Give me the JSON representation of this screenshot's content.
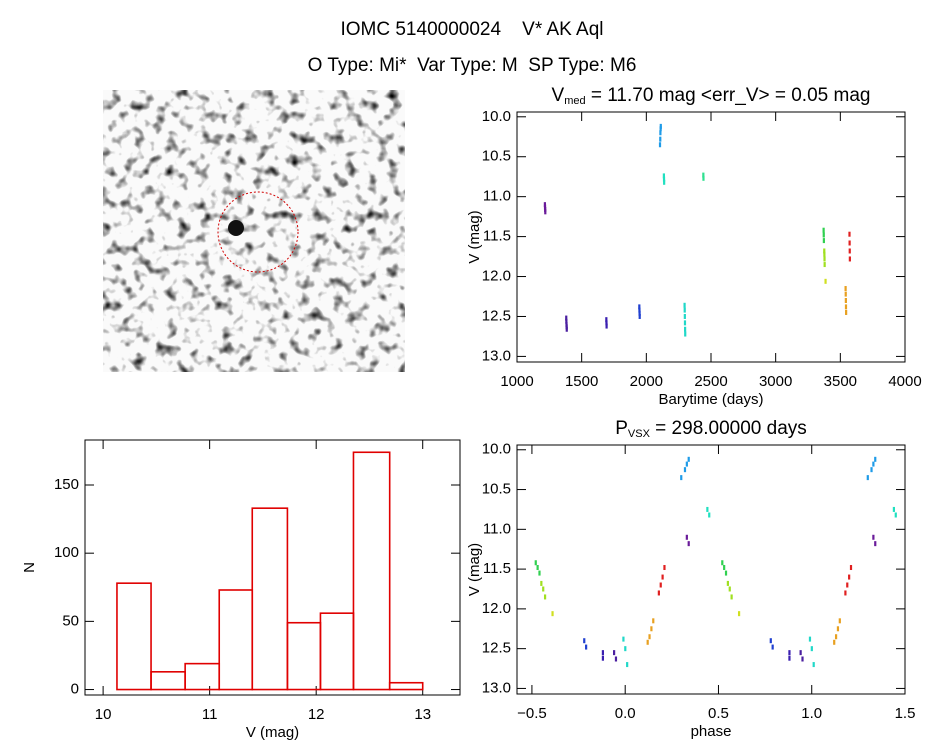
{
  "header": {
    "title": "IOMC 5140000024    V* AK Aql",
    "subtitle": "O Type: Mi*  Var Type: M  SP Type: M6"
  },
  "chart_data": [
    {
      "type": "scatter",
      "title": [
        "V",
        "med",
        " = 11.70 mag <err_V> = 0.05 mag"
      ],
      "xlabel": "Barytime (days)",
      "ylabel": "V (mag)",
      "xlim": [
        1000,
        4000
      ],
      "xticks": [
        1000,
        1500,
        2000,
        2500,
        3000,
        3500,
        4000
      ],
      "ylim": [
        9.94,
        13.07
      ],
      "yreverse": true,
      "yticks": [
        {
          "value": 10,
          "label": "10.0"
        },
        {
          "value": 10.5,
          "label": "10.5"
        },
        {
          "value": 11,
          "label": "11.0"
        },
        {
          "value": 11.5,
          "label": "11.5"
        },
        {
          "value": 12,
          "label": "12.0"
        },
        {
          "value": 12.5,
          "label": "12.5"
        },
        {
          "value": 13,
          "label": "13.0"
        }
      ],
      "series": [
        {
          "color": "#6a1b9a",
          "x": [
            1215,
            1216,
            1217,
            1218
          ],
          "y": [
            11.1,
            11.13,
            11.16,
            11.19
          ]
        },
        {
          "color": "#4b1fa0",
          "x": [
            1380,
            1381,
            1382,
            1383,
            1384
          ],
          "y": [
            12.52,
            12.56,
            12.6,
            12.63,
            12.66
          ]
        },
        {
          "color": "#3a1fb0",
          "x": [
            1690,
            1691,
            1692
          ],
          "y": [
            12.54,
            12.58,
            12.62
          ]
        },
        {
          "color": "#2040d0",
          "x": [
            1945,
            1946,
            1947,
            1948
          ],
          "y": [
            12.38,
            12.42,
            12.46,
            12.5
          ]
        },
        {
          "color": "#1e9be8",
          "x": [
            2105,
            2107,
            2108,
            2110,
            2111
          ],
          "y": [
            10.35,
            10.28,
            10.2,
            10.15,
            10.12
          ]
        },
        {
          "color": "#20e0c0",
          "x": [
            2135,
            2136,
            2137
          ],
          "y": [
            10.74,
            10.78,
            10.82
          ]
        },
        {
          "color": "#20d8c8",
          "x": [
            2295,
            2296,
            2297,
            2298,
            2299,
            2300
          ],
          "y": [
            12.36,
            12.42,
            12.5,
            12.58,
            12.66,
            12.72
          ]
        },
        {
          "color": "#30e090",
          "x": [
            2440,
            2441
          ],
          "y": [
            10.73,
            10.77
          ]
        },
        {
          "color": "#30d050",
          "x": [
            3370,
            3371,
            3372
          ],
          "y": [
            11.42,
            11.48,
            11.55
          ]
        },
        {
          "color": "#a0e020",
          "x": [
            3375,
            3376,
            3377,
            3378
          ],
          "y": [
            11.68,
            11.72,
            11.78,
            11.85
          ]
        },
        {
          "color": "#d0e020",
          "x": [
            3385
          ],
          "y": [
            12.06
          ]
        },
        {
          "color": "#e8a020",
          "x": [
            3540,
            3541,
            3542,
            3543,
            3544
          ],
          "y": [
            12.15,
            12.22,
            12.3,
            12.38,
            12.45
          ]
        },
        {
          "color": "#e02020",
          "x": [
            3570,
            3571,
            3572,
            3573
          ],
          "y": [
            11.47,
            11.58,
            11.68,
            11.78
          ]
        }
      ]
    },
    {
      "type": "histogram",
      "xlabel": "V (mag)",
      "ylabel": "N",
      "color": "#e00000",
      "bins": [
        10.13,
        10.45,
        10.77,
        11.09,
        11.4,
        11.73,
        12.04,
        12.35,
        12.69,
        13.0
      ],
      "counts": [
        78,
        13,
        19,
        73,
        133,
        49,
        56,
        174,
        5
      ],
      "xlim": [
        9.83,
        13.35
      ],
      "xticks": [
        10,
        11,
        12,
        13
      ],
      "ylim": [
        -4,
        183
      ],
      "yticks": [
        0,
        50,
        100,
        150
      ]
    },
    {
      "type": "scatter",
      "title": [
        "P",
        "VSX",
        " = 298.00000 days"
      ],
      "xlabel": "phase",
      "ylabel": "V (mag)",
      "xlim": [
        -0.58,
        1.5
      ],
      "xticks": [
        {
          "value": -0.5,
          "label": "−0.5"
        },
        {
          "value": 0,
          "label": "0.0"
        },
        {
          "value": 0.5,
          "label": "0.5"
        },
        {
          "value": 1,
          "label": "1.0"
        },
        {
          "value": 1.5,
          "label": "1.5"
        }
      ],
      "ylim": [
        9.94,
        13.07
      ],
      "yreverse": true,
      "yticks": [
        {
          "value": 10,
          "label": "10.0"
        },
        {
          "value": 10.5,
          "label": "10.5"
        },
        {
          "value": 11,
          "label": "11.0"
        },
        {
          "value": 11.5,
          "label": "11.5"
        },
        {
          "value": 12,
          "label": "12.0"
        },
        {
          "value": 12.5,
          "label": "12.5"
        },
        {
          "value": 13,
          "label": "13.0"
        }
      ],
      "series": [
        {
          "color": "#30d050",
          "x": [
            -0.48,
            -0.47,
            -0.46,
            0.52,
            0.53,
            0.54
          ],
          "y": [
            11.42,
            11.48,
            11.55,
            11.42,
            11.48,
            11.55
          ]
        },
        {
          "color": "#a0e020",
          "x": [
            -0.45,
            -0.44,
            -0.43,
            0.55,
            0.56,
            0.57
          ],
          "y": [
            11.68,
            11.75,
            11.85,
            11.68,
            11.75,
            11.85
          ]
        },
        {
          "color": "#d0e020",
          "x": [
            -0.39,
            0.61
          ],
          "y": [
            12.06,
            12.06
          ]
        },
        {
          "color": "#2040d0",
          "x": [
            -0.22,
            -0.21,
            0.78,
            0.79
          ],
          "y": [
            12.4,
            12.48,
            12.4,
            12.48
          ]
        },
        {
          "color": "#3a1fb0",
          "x": [
            -0.12,
            -0.12,
            0.88,
            0.88
          ],
          "y": [
            12.55,
            12.62,
            12.55,
            12.62
          ]
        },
        {
          "color": "#4b1fa0",
          "x": [
            -0.06,
            -0.05,
            0.94,
            0.95
          ],
          "y": [
            12.55,
            12.63,
            12.55,
            12.63
          ]
        },
        {
          "color": "#20d8c8",
          "x": [
            -0.01,
            0,
            0.01,
            0.99,
            1,
            1.01
          ],
          "y": [
            12.38,
            12.5,
            12.7,
            12.38,
            12.5,
            12.7
          ]
        },
        {
          "color": "#e8a020",
          "x": [
            0.12,
            0.13,
            0.14,
            0.15,
            1.12,
            1.13,
            1.14,
            1.15
          ],
          "y": [
            12.42,
            12.35,
            12.25,
            12.15,
            12.42,
            12.35,
            12.25,
            12.15
          ]
        },
        {
          "color": "#e02020",
          "x": [
            0.18,
            0.19,
            0.2,
            0.21,
            1.18,
            1.19,
            1.2,
            1.21
          ],
          "y": [
            11.8,
            11.7,
            11.6,
            11.48,
            11.8,
            11.7,
            11.6,
            11.48
          ]
        },
        {
          "color": "#1e9be8",
          "x": [
            0.3,
            0.32,
            0.33,
            0.34,
            1.3,
            1.32,
            1.33,
            1.34
          ],
          "y": [
            10.35,
            10.25,
            10.18,
            10.12,
            10.35,
            10.25,
            10.18,
            10.12
          ]
        },
        {
          "color": "#6a1b9a",
          "x": [
            0.33,
            0.34,
            1.33,
            1.34
          ],
          "y": [
            11.1,
            11.18,
            11.1,
            11.18
          ]
        },
        {
          "color": "#20e0c0",
          "x": [
            0.44,
            0.45,
            1.44,
            1.45
          ],
          "y": [
            10.75,
            10.82,
            10.75,
            10.82
          ]
        }
      ]
    }
  ]
}
